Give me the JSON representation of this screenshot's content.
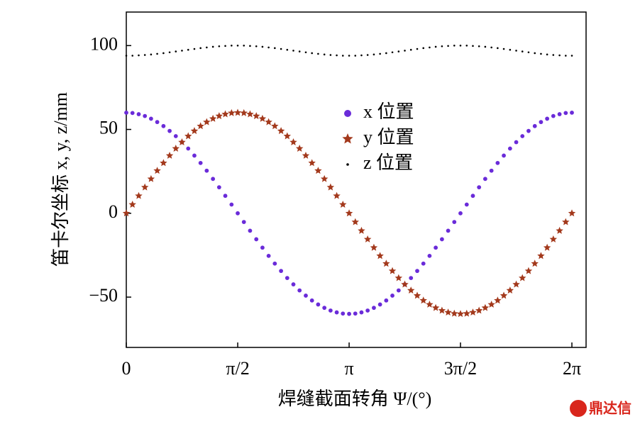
{
  "chart_data": {
    "type": "scatter",
    "xlabel": "焊缝截面转角 Ψ/(°)",
    "ylabel": "笛卡尔坐标 x, y, z/mm",
    "watermark": "鼎达信",
    "xlim": [
      0,
      6.483
    ],
    "ylim": [
      -80,
      120
    ],
    "xticks": [
      0,
      {
        "value": 1.571,
        "label": "π/2"
      },
      {
        "value": 3.142,
        "label": "π"
      },
      {
        "value": 4.712,
        "label": "3π/2"
      },
      {
        "value": 6.283,
        "label": "2π"
      }
    ],
    "yticks": [
      {
        "value": -50,
        "label": "−50"
      },
      0,
      50,
      100
    ],
    "legend": "upper-center",
    "x": [
      0,
      0.087,
      0.175,
      0.262,
      0.349,
      0.436,
      0.524,
      0.611,
      0.698,
      0.785,
      0.873,
      0.96,
      1.047,
      1.134,
      1.222,
      1.309,
      1.396,
      1.484,
      1.571,
      1.658,
      1.745,
      1.833,
      1.92,
      2.007,
      2.094,
      2.182,
      2.269,
      2.356,
      2.443,
      2.531,
      2.618,
      2.705,
      2.793,
      2.88,
      2.967,
      3.054,
      3.142,
      3.229,
      3.316,
      3.403,
      3.491,
      3.578,
      3.665,
      3.752,
      3.84,
      3.927,
      4.014,
      4.102,
      4.189,
      4.276,
      4.363,
      4.451,
      4.538,
      4.625,
      4.712,
      4.8,
      4.887,
      4.974,
      5.061,
      5.149,
      5.236,
      5.323,
      5.411,
      5.498,
      5.585,
      5.672,
      5.76,
      5.847,
      5.934,
      6.021,
      6.109,
      6.196,
      6.283
    ],
    "series": [
      {
        "name": "x 位置",
        "color": "#6a2bd9",
        "marker": "circle",
        "values": [
          60,
          59.8,
          59.1,
          58,
          56.4,
          54.4,
          52,
          49.1,
          46,
          42.4,
          38.6,
          34.4,
          30,
          25.4,
          20.5,
          15.5,
          10.4,
          5.2,
          0,
          -5.2,
          -10.4,
          -15.5,
          -20.5,
          -25.4,
          -30,
          -34.4,
          -38.6,
          -42.4,
          -46,
          -49.1,
          -52,
          -54.4,
          -56.4,
          -58,
          -59.1,
          -59.8,
          -60,
          -59.8,
          -59.1,
          -58,
          -56.4,
          -54.4,
          -52,
          -49.1,
          -46,
          -42.4,
          -38.6,
          -34.4,
          -30,
          -25.4,
          -20.5,
          -15.5,
          -10.4,
          -5.2,
          0,
          5.2,
          10.4,
          15.5,
          20.5,
          25.4,
          30,
          34.4,
          38.6,
          42.4,
          46,
          49.1,
          52,
          54.4,
          56.4,
          58,
          59.1,
          59.8,
          60
        ]
      },
      {
        "name": "y 位置",
        "color": "#a3391c",
        "marker": "star",
        "values": [
          0,
          5.2,
          10.4,
          15.5,
          20.5,
          25.4,
          30,
          34.4,
          38.6,
          42.4,
          46,
          49.1,
          52,
          54.4,
          56.4,
          58,
          59.1,
          59.8,
          60,
          59.8,
          59.1,
          58,
          56.4,
          54.4,
          52,
          49.1,
          46,
          42.4,
          38.6,
          34.4,
          30,
          25.4,
          20.5,
          15.5,
          10.4,
          5.2,
          0,
          -5.2,
          -10.4,
          -15.5,
          -20.5,
          -25.4,
          -30,
          -34.4,
          -38.6,
          -42.4,
          -46,
          -49.1,
          -52,
          -54.4,
          -56.4,
          -58,
          -59.1,
          -59.8,
          -60,
          -59.8,
          -59.1,
          -58,
          -56.4,
          -54.4,
          -52,
          -49.1,
          -46,
          -42.4,
          -38.6,
          -34.4,
          -30,
          -25.4,
          -20.5,
          -15.5,
          -10.4,
          -5.2,
          0
        ]
      },
      {
        "name": "z 位置",
        "color": "#000000",
        "marker": "dot",
        "values": [
          94,
          94,
          94.2,
          94.4,
          94.7,
          95.1,
          95.5,
          96,
          96.5,
          97,
          97.5,
          98,
          98.5,
          98.9,
          99.3,
          99.6,
          99.8,
          100,
          100,
          100,
          99.8,
          99.6,
          99.3,
          98.9,
          98.5,
          98,
          97.5,
          97,
          96.5,
          96,
          95.5,
          95.1,
          94.7,
          94.4,
          94.2,
          94,
          94,
          94,
          94.2,
          94.4,
          94.7,
          95.1,
          95.5,
          96,
          96.5,
          97,
          97.5,
          98,
          98.5,
          98.9,
          99.3,
          99.6,
          99.8,
          100,
          100,
          100,
          99.8,
          99.6,
          99.3,
          98.9,
          98.5,
          98,
          97.5,
          97,
          96.5,
          96,
          95.5,
          95.1,
          94.7,
          94.4,
          94.2,
          94,
          94
        ]
      }
    ]
  }
}
